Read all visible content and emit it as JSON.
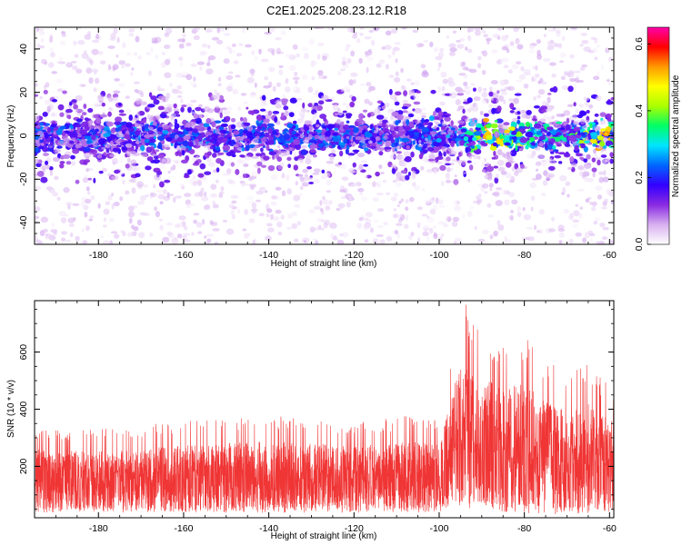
{
  "title": "C2E1.2025.208.23.12.R18",
  "chart_data": [
    {
      "type": "heatmap",
      "xlabel": "Height of straight line (km)",
      "ylabel": "Frequency (Hz)",
      "xlim": [
        -195,
        -59
      ],
      "ylim": [
        -50,
        50
      ],
      "xticks": [
        -180,
        -160,
        -140,
        -120,
        -100,
        -80,
        -60
      ],
      "yticks": [
        -40,
        -20,
        0,
        20,
        40
      ],
      "xtick_labels": [
        "-180",
        "-160",
        "-140",
        "-120",
        "-100",
        "-80",
        "-60"
      ],
      "ytick_labels": [
        "-40",
        "-20",
        "0",
        "20",
        "40"
      ],
      "colorbar": {
        "label": "Normalized spectral amplitude",
        "range": [
          0,
          0.65
        ],
        "ticks": [
          0.0,
          0.2,
          0.4,
          0.6
        ],
        "tick_labels": [
          "0.0",
          "0.2",
          "0.4",
          "0.6"
        ],
        "colors": [
          "#ffffff",
          "#d8b0f0",
          "#8a2be2",
          "#3300ff",
          "#0066ff",
          "#00e5ff",
          "#00ff66",
          "#aaff00",
          "#ffff00",
          "#ff9900",
          "#ff0000",
          "#ff00aa"
        ]
      },
      "band_center_hz": 0,
      "band_halfwidth_hz": 4,
      "band_mean_amplitude": [
        {
          "x": -190,
          "value": 0.2
        },
        {
          "x": -170,
          "value": 0.22
        },
        {
          "x": -150,
          "value": 0.2
        },
        {
          "x": -130,
          "value": 0.21
        },
        {
          "x": -110,
          "value": 0.2
        },
        {
          "x": -95,
          "value": 0.23
        },
        {
          "x": -88,
          "value": 0.48
        },
        {
          "x": -80,
          "value": 0.32
        },
        {
          "x": -70,
          "value": 0.28
        },
        {
          "x": -63,
          "value": 0.45
        }
      ],
      "grid": false
    },
    {
      "type": "line",
      "xlabel": "Height of straight line (km)",
      "ylabel": "SNR (10 * v/v)",
      "xlim": [
        -195,
        -59
      ],
      "ylim": [
        20,
        780
      ],
      "xticks": [
        -180,
        -160,
        -140,
        -120,
        -100,
        -80,
        -60
      ],
      "yticks": [
        200,
        400,
        600
      ],
      "xtick_labels": [
        "-180",
        "-160",
        "-140",
        "-120",
        "-100",
        "-80",
        "-60"
      ],
      "ytick_labels": [
        "200",
        "400",
        "600"
      ],
      "series": [
        {
          "color": "#f03535",
          "envelope": [
            {
              "x": -195,
              "low": 45,
              "high": 340
            },
            {
              "x": -180,
              "low": 45,
              "high": 330
            },
            {
              "x": -160,
              "low": 45,
              "high": 360
            },
            {
              "x": -140,
              "low": 45,
              "high": 380
            },
            {
              "x": -120,
              "low": 45,
              "high": 360
            },
            {
              "x": -105,
              "low": 45,
              "high": 380
            },
            {
              "x": -100,
              "low": 50,
              "high": 360
            },
            {
              "x": -97,
              "low": 60,
              "high": 620
            },
            {
              "x": -94,
              "low": 70,
              "high": 780
            },
            {
              "x": -90,
              "low": 60,
              "high": 680
            },
            {
              "x": -85,
              "low": 55,
              "high": 640
            },
            {
              "x": -80,
              "low": 50,
              "high": 660
            },
            {
              "x": -75,
              "low": 45,
              "high": 580
            },
            {
              "x": -70,
              "low": 45,
              "high": 520
            },
            {
              "x": -65,
              "low": 45,
              "high": 560
            },
            {
              "x": -59,
              "low": 45,
              "high": 470
            }
          ]
        }
      ],
      "grid": false
    }
  ]
}
